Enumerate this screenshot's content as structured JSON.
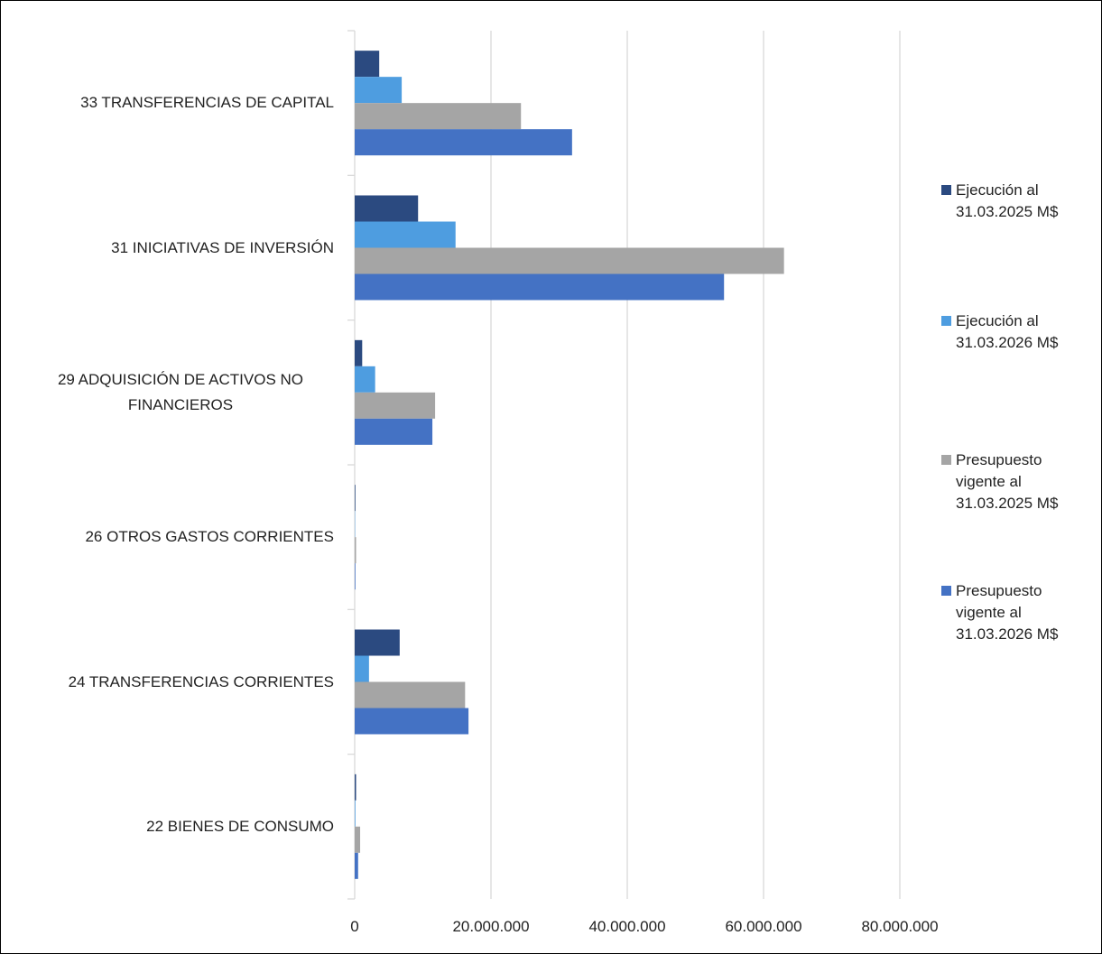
{
  "chart_data": {
    "type": "bar",
    "orientation": "horizontal",
    "categories": [
      "33 TRANSFERENCIAS DE CAPITAL",
      "31 INICIATIVAS DE INVERSIÓN",
      "29 ADQUISICIÓN DE ACTIVOS NO FINANCIEROS",
      "26 OTROS GASTOS CORRIENTES",
      "24 TRANSFERENCIAS CORRIENTES",
      "22 BIENES DE CONSUMO"
    ],
    "series": [
      {
        "name": "Ejecución al 31.03.2025 M$",
        "color": "#2b4a80",
        "values": [
          3600000,
          9300000,
          1100000,
          100000,
          6600000,
          200000
        ]
      },
      {
        "name": "Ejecución al 31.03.2026 M$",
        "color": "#4e9de0",
        "values": [
          6900000,
          14800000,
          3000000,
          50000,
          2100000,
          100000
        ]
      },
      {
        "name": "Presupuesto vigente al 31.03.2025 M$",
        "color": "#a5a5a5",
        "values": [
          24400000,
          63000000,
          11800000,
          200000,
          16200000,
          800000
        ]
      },
      {
        "name": "Presupuesto vigente al 31.03.2026 M$",
        "color": "#4472c4",
        "values": [
          31900000,
          54200000,
          11400000,
          100000,
          16700000,
          500000
        ]
      }
    ],
    "xlim": [
      0,
      80000000
    ],
    "xticks": [
      0,
      {
        "value": 20000000,
        "label": "20.000.000"
      },
      {
        "value": 40000000,
        "label": "40.000.000"
      },
      {
        "value": 60000000,
        "label": "60.000.000"
      },
      {
        "value": 80000000,
        "label": "80.000.000"
      }
    ],
    "grid": true,
    "legend": "right"
  }
}
